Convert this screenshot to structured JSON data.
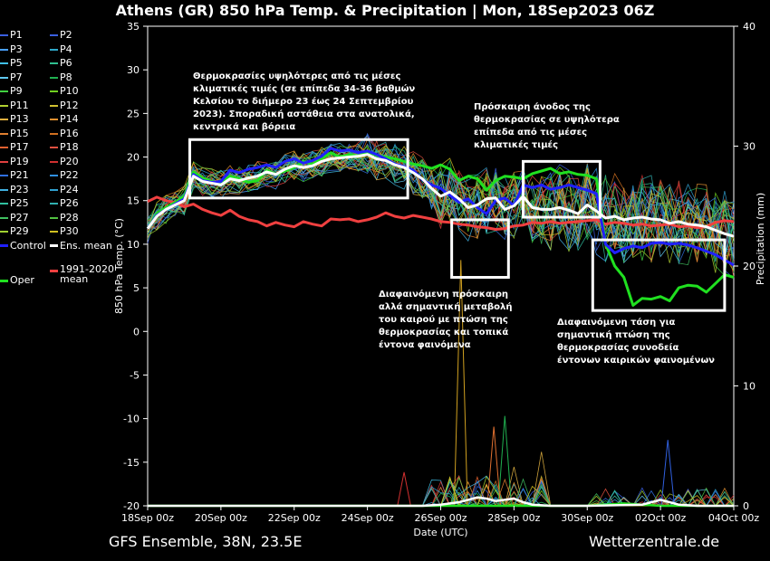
{
  "title": "Athens  (GR)  850 hPa Temp. & Precipitation | Mon, 18Sep2023 06Z",
  "footer": {
    "left": "GFS Ensemble, 38N, 23.5E",
    "right": "Wetterzentrale.de"
  },
  "annotations": [
    "Θερμοκρασίες υψηλότερες από τις μέσες κλιματικές τιμές (σε επίπεδα 34-36 βαθμών Κελσίου το διήμερο 23 έως 24 Σεπτεμβρίου 2023). Σποραδική αστάθεια στα ανατολικά, κεντρικά και βόρεια",
    "Πρόσκαιρη άνοδος της θερμοκρασίας σε υψηλότερα επίπεδα από τις μέσες κλιματικές τιμές",
    "Διαφαινόμενη πρόσκαιρη αλλά σημαντική μεταβολή του καιρού με πτώση της θερμοκρασίας και τοπικά έντονα φαινόμενα",
    "Διαφαινόμενη τάση για σημαντική πτώση της θερμοκρασίας συνοδεία έντονων καιρικών φαινομένων"
  ],
  "legend": [
    {
      "label": "P1",
      "color": "#3a5fe0"
    },
    {
      "label": "P2",
      "color": "#3a5fe0"
    },
    {
      "label": "P3",
      "color": "#4aa0ff"
    },
    {
      "label": "P4",
      "color": "#2fa8c8"
    },
    {
      "label": "P5",
      "color": "#40c0e8"
    },
    {
      "label": "P6",
      "color": "#30c090"
    },
    {
      "label": "P7",
      "color": "#60c8f0"
    },
    {
      "label": "P8",
      "color": "#20b050"
    },
    {
      "label": "P9",
      "color": "#40d040"
    },
    {
      "label": "P10",
      "color": "#70d020"
    },
    {
      "label": "P11",
      "color": "#b0d030"
    },
    {
      "label": "P12",
      "color": "#d0c030"
    },
    {
      "label": "P13",
      "color": "#e0b040"
    },
    {
      "label": "P14",
      "color": "#e09030"
    },
    {
      "label": "P15",
      "color": "#e08030"
    },
    {
      "label": "P16",
      "color": "#d07020"
    },
    {
      "label": "P17",
      "color": "#e06030"
    },
    {
      "label": "P18",
      "color": "#e05040"
    },
    {
      "label": "P19",
      "color": "#e04040"
    },
    {
      "label": "P20",
      "color": "#d03030"
    },
    {
      "label": "P21",
      "color": "#3070e0"
    },
    {
      "label": "P22",
      "color": "#3090e0"
    },
    {
      "label": "P23",
      "color": "#40b0e0"
    },
    {
      "label": "P24",
      "color": "#30a0d0"
    },
    {
      "label": "P25",
      "color": "#30c0a0"
    },
    {
      "label": "P26",
      "color": "#30b0b0"
    },
    {
      "label": "P27",
      "color": "#40c060"
    },
    {
      "label": "P28",
      "color": "#50c040"
    },
    {
      "label": "P29",
      "color": "#a0d030"
    },
    {
      "label": "P30",
      "color": "#d0c020"
    },
    {
      "label": "Control",
      "color": "#2020ff"
    },
    {
      "label": "Ens. mean",
      "color": "#ffffff"
    },
    {
      "label": "Oper",
      "color": "#20e020"
    },
    {
      "label": "1991-2020 mean",
      "color": "#f04040"
    }
  ],
  "chart_data": {
    "type": "line",
    "title": "Athens  (GR)  850 hPa Temp. & Precipitation | Mon, 18Sep2023 06Z",
    "xlabel": "Date (UTC)",
    "ylabel": "850 hPa Temp. (°C)",
    "y2label": "Precipitation (mm)",
    "x_ticks": [
      "18Sep 00z",
      "20Sep 00z",
      "22Sep 00z",
      "24Sep 00z",
      "26Sep 00z",
      "28Sep 00z",
      "30Sep 00z",
      "02Oct 00z",
      "04Oct 00z"
    ],
    "x_days": [
      0,
      2,
      4,
      6,
      8,
      10,
      12,
      14,
      16
    ],
    "xlim": [
      0,
      16
    ],
    "ylim": [
      -20,
      35
    ],
    "y_ticks": [
      -20,
      -15,
      -10,
      -5,
      0,
      5,
      10,
      15,
      20,
      25,
      30,
      35
    ],
    "y2lim": [
      0,
      40
    ],
    "y2_ticks": [
      0,
      10,
      20,
      30,
      40
    ],
    "grid": false,
    "legend_placement": "left outside",
    "boxes": [
      {
        "x0": 1.15,
        "x1": 7.1,
        "y0": 15.3,
        "y1": 22.0
      },
      {
        "x0": 8.3,
        "x1": 9.85,
        "y0": 6.2,
        "y1": 12.8
      },
      {
        "x0": 10.25,
        "x1": 12.35,
        "y0": 13.1,
        "y1": 19.5
      },
      {
        "x0": 12.15,
        "x1": 15.75,
        "y0": 2.4,
        "y1": 10.5
      }
    ],
    "series": [
      {
        "name": "1991-2020 mean",
        "color": "#f04040",
        "width": 3,
        "x": [
          0,
          0.25,
          0.5,
          0.75,
          1,
          1.25,
          1.5,
          1.75,
          2,
          2.25,
          2.5,
          2.75,
          3,
          3.25,
          3.5,
          3.75,
          4,
          4.25,
          4.5,
          4.75,
          5,
          5.25,
          5.5,
          5.75,
          6,
          6.25,
          6.5,
          6.75,
          7,
          7.25,
          7.5,
          7.75,
          8,
          8.25,
          8.5,
          8.75,
          9,
          9.25,
          9.5,
          9.75,
          10,
          10.25,
          10.5,
          10.75,
          11,
          11.25,
          11.5,
          11.75,
          12,
          12.25,
          12.5,
          12.75,
          13,
          13.25,
          13.5,
          13.75,
          14,
          14.25,
          14.5,
          14.75,
          15,
          15.25,
          15.5,
          15.75,
          16
        ],
        "y": [
          14.9,
          15.4,
          15.0,
          14.8,
          14.3,
          14.6,
          14.0,
          13.6,
          13.3,
          13.9,
          13.2,
          12.8,
          12.6,
          12.1,
          12.5,
          12.2,
          12.0,
          12.6,
          12.3,
          12.1,
          12.9,
          12.8,
          12.9,
          12.6,
          12.8,
          13.1,
          13.6,
          13.2,
          13.0,
          13.3,
          13.1,
          12.9,
          12.6,
          12.5,
          12.3,
          12.2,
          12.0,
          11.9,
          11.7,
          11.8,
          12.1,
          12.2,
          12.5,
          12.4,
          12.6,
          12.4,
          12.5,
          12.6,
          12.7,
          12.8,
          12.3,
          12.5,
          12.4,
          12.2,
          12.3,
          12.1,
          12.2,
          12.3,
          12.0,
          12.1,
          11.9,
          12.0,
          12.5,
          12.7,
          12.6
        ]
      },
      {
        "name": "Oper",
        "color": "#20e020",
        "width": 3,
        "x": [
          0,
          0.25,
          0.5,
          0.75,
          1,
          1.25,
          1.5,
          1.75,
          2,
          2.25,
          2.5,
          2.75,
          3,
          3.25,
          3.5,
          3.75,
          4,
          4.25,
          4.5,
          4.75,
          5,
          5.25,
          5.5,
          5.75,
          6,
          6.25,
          6.5,
          6.75,
          7,
          7.25,
          7.5,
          7.75,
          8,
          8.25,
          8.5,
          8.75,
          9,
          9.25,
          9.5,
          9.75,
          10,
          10.25,
          10.5,
          10.75,
          11,
          11.25,
          11.5,
          11.75,
          12,
          12.25,
          12.5,
          12.75,
          13,
          13.25,
          13.5,
          13.75,
          14,
          14.25,
          14.5,
          14.75,
          15,
          15.25,
          15.5,
          15.75,
          16
        ],
        "y": [
          11.8,
          13.5,
          14.2,
          14.8,
          15.5,
          18.3,
          17.6,
          17.2,
          17.0,
          17.8,
          17.5,
          17.1,
          17.3,
          18.5,
          18.0,
          18.4,
          18.8,
          19.5,
          19.2,
          19.8,
          20.5,
          20.0,
          20.3,
          20.1,
          20.6,
          20.2,
          20.0,
          19.8,
          19.5,
          19.2,
          19.0,
          18.7,
          19.1,
          18.6,
          17.3,
          17.8,
          17.5,
          16.2,
          17.3,
          17.8,
          17.7,
          17.5,
          18.1,
          18.4,
          18.7,
          18.1,
          18.3,
          18.0,
          17.9,
          17.5,
          10.0,
          7.5,
          6.2,
          3.0,
          3.8,
          3.7,
          4.0,
          3.5,
          5.0,
          5.3,
          5.2,
          4.5,
          5.5,
          6.5,
          6.2
        ]
      },
      {
        "name": "Control",
        "color": "#2020ff",
        "width": 3,
        "x": [
          0,
          0.25,
          0.5,
          0.75,
          1,
          1.25,
          1.5,
          1.75,
          2,
          2.25,
          2.5,
          2.75,
          3,
          3.25,
          3.5,
          3.75,
          4,
          4.25,
          4.5,
          4.75,
          5,
          5.25,
          5.5,
          5.75,
          6,
          6.25,
          6.5,
          6.75,
          7,
          7.25,
          7.5,
          7.75,
          8,
          8.25,
          8.5,
          8.75,
          9,
          9.25,
          9.5,
          9.75,
          10,
          10.25,
          10.5,
          10.75,
          11,
          11.25,
          11.5,
          11.75,
          12,
          12.25,
          12.5,
          12.75,
          13,
          13.25,
          13.5,
          13.75,
          14,
          14.25,
          14.5,
          14.75,
          15,
          15.25,
          15.5,
          15.75,
          16
        ],
        "y": [
          11.8,
          13.3,
          14.0,
          14.6,
          15.2,
          18.0,
          17.3,
          17.1,
          17.2,
          18.5,
          18.2,
          18.6,
          18.8,
          19.1,
          18.8,
          19.5,
          19.8,
          19.3,
          19.6,
          20.1,
          21.0,
          20.7,
          20.8,
          20.5,
          20.7,
          20.3,
          19.8,
          19.2,
          18.9,
          18.5,
          17.4,
          16.8,
          16.4,
          15.6,
          14.8,
          15.2,
          14.2,
          13.5,
          15.0,
          15.3,
          14.4,
          16.8,
          16.5,
          16.8,
          16.3,
          16.5,
          16.8,
          16.5,
          16.2,
          15.8,
          10.0,
          9.0,
          9.5,
          9.8,
          9.6,
          10.1,
          10.2,
          10.0,
          10.1,
          9.9,
          9.6,
          9.2,
          8.8,
          8.2,
          7.6
        ]
      },
      {
        "name": "Ens. mean",
        "color": "#ffffff",
        "width": 3,
        "x": [
          0,
          0.25,
          0.5,
          0.75,
          1,
          1.25,
          1.5,
          1.75,
          2,
          2.25,
          2.5,
          2.75,
          3,
          3.25,
          3.5,
          3.75,
          4,
          4.25,
          4.5,
          4.75,
          5,
          5.25,
          5.5,
          5.75,
          6,
          6.25,
          6.5,
          6.75,
          7,
          7.25,
          7.5,
          7.75,
          8,
          8.25,
          8.5,
          8.75,
          9,
          9.25,
          9.5,
          9.75,
          10,
          10.25,
          10.5,
          10.75,
          11,
          11.25,
          11.5,
          11.75,
          12,
          12.25,
          12.5,
          12.75,
          13,
          13.25,
          13.5,
          13.75,
          14,
          14.25,
          14.5,
          14.75,
          15,
          15.25,
          15.5,
          15.75,
          16
        ],
        "y": [
          11.8,
          13.2,
          14.0,
          14.5,
          15.0,
          17.8,
          17.2,
          17.0,
          16.8,
          17.5,
          17.3,
          17.6,
          17.8,
          18.3,
          18.0,
          18.6,
          19.0,
          18.8,
          19.0,
          19.5,
          19.8,
          19.9,
          20.0,
          20.1,
          20.3,
          19.8,
          19.6,
          19.1,
          18.8,
          18.2,
          17.5,
          16.4,
          15.5,
          16.0,
          15.2,
          14.2,
          14.5,
          15.2,
          15.3,
          14.0,
          14.4,
          15.5,
          14.2,
          14.0,
          14.0,
          14.2,
          13.9,
          13.5,
          14.5,
          13.8,
          13.0,
          13.2,
          12.8,
          13.0,
          13.1,
          12.9,
          12.8,
          12.4,
          12.6,
          12.3,
          12.2,
          12.0,
          11.6,
          11.2,
          10.9
        ]
      }
    ],
    "precip_series": [
      {
        "name": "Oper precip",
        "color": "#20e020",
        "width": 2.5,
        "x": [
          0,
          2,
          4,
          6,
          8,
          9,
          10,
          12,
          13,
          14,
          16
        ],
        "y": [
          0,
          0,
          0,
          0,
          0,
          0,
          0,
          0,
          0.2,
          0,
          0
        ]
      },
      {
        "name": "Ens. mean precip",
        "color": "#ffffff",
        "width": 2.5,
        "x": [
          0,
          7.5,
          8,
          8.5,
          8.75,
          9,
          9.25,
          9.5,
          9.75,
          10,
          10.25,
          10.5,
          11,
          12,
          13.5,
          14,
          14.25,
          14.5,
          15,
          16
        ],
        "y": [
          0,
          0,
          0.1,
          0.3,
          0.5,
          0.7,
          0.6,
          0.4,
          0.5,
          0.6,
          0.3,
          0.1,
          0,
          0,
          0.1,
          0.5,
          0.3,
          0.1,
          0,
          0
        ]
      }
    ]
  }
}
